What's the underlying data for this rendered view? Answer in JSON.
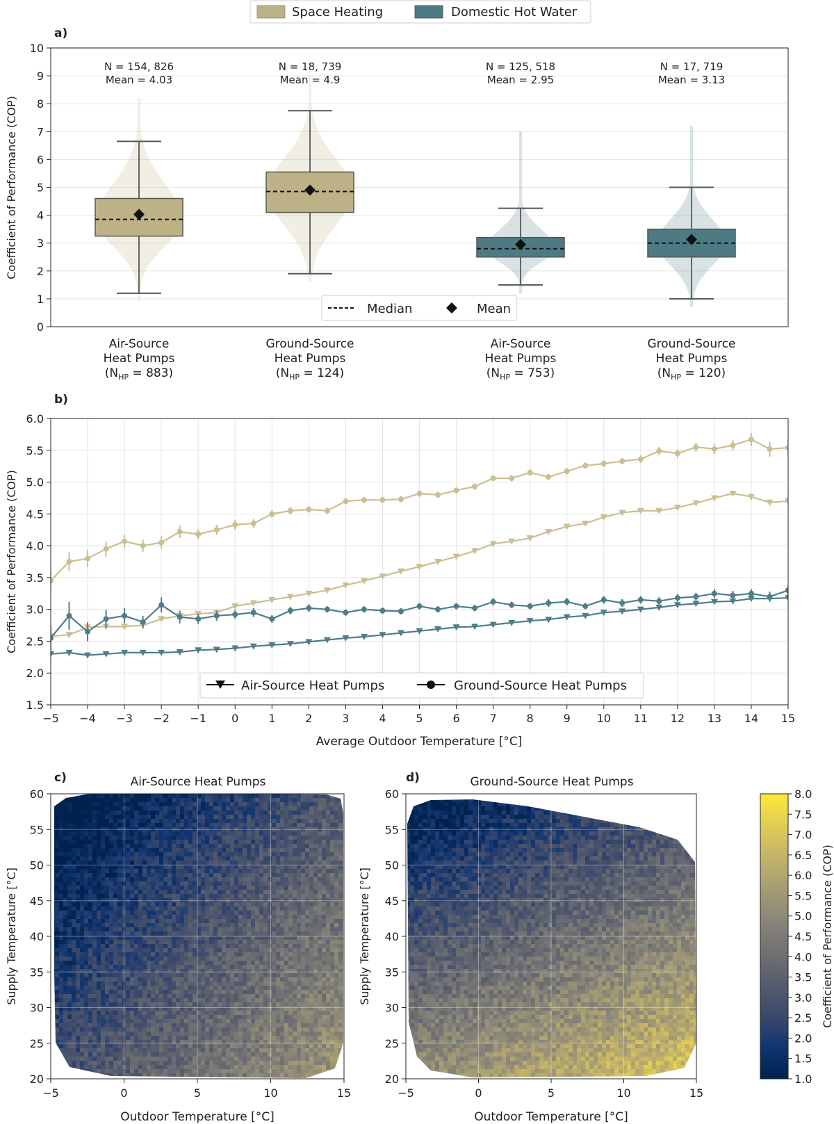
{
  "figure_legend": {
    "items": [
      {
        "label": "Space Heating",
        "color": "#bdb285"
      },
      {
        "label": "Domestic Hot Water",
        "color": "#4e7a84"
      }
    ]
  },
  "colors": {
    "space_heating": "#bdb285",
    "dhw": "#4e7a84",
    "sh_line": "#c9bf92",
    "dhw_line": "#4f7d88",
    "grid": "#e4e4e4"
  },
  "panel_labels": {
    "a": "a)",
    "b": "b)",
    "c": "c)",
    "d": "d)"
  },
  "chart_data": [
    {
      "id": "a",
      "type": "box",
      "ylabel": "Coefficient of Performance (COP)",
      "ylim": [
        0,
        10
      ],
      "yticks": [
        0,
        1,
        2,
        3,
        4,
        5,
        6,
        7,
        8,
        9,
        10
      ],
      "grid": true,
      "legend": {
        "placement": "bottom-center",
        "median_label": "Median",
        "mean_label": "Mean"
      },
      "boxes": [
        {
          "category": [
            "Air-Source",
            "Heat Pumps"
          ],
          "nhp_value": "883",
          "group": "space_heating",
          "whisker_low": 1.2,
          "q1": 3.25,
          "median": 3.85,
          "q3": 4.6,
          "whisker_high": 6.65,
          "mean": 4.03,
          "violin_top": 8.2,
          "n_label": "N = 154, 826",
          "mean_label": "Mean = 4.03"
        },
        {
          "category": [
            "Ground-Source",
            "Heat Pumps"
          ],
          "nhp_value": "124",
          "group": "space_heating",
          "whisker_low": 1.9,
          "q1": 4.1,
          "median": 4.85,
          "q3": 5.55,
          "whisker_high": 7.75,
          "mean": 4.9,
          "violin_top": 9.0,
          "n_label": "N = 18, 739",
          "mean_label": "Mean = 4.9"
        },
        {
          "category": [
            "Air-Source",
            "Heat Pumps"
          ],
          "nhp_value": "753",
          "group": "dhw",
          "whisker_low": 1.5,
          "q1": 2.5,
          "median": 2.8,
          "q3": 3.2,
          "whisker_high": 4.25,
          "mean": 2.95,
          "violin_top": 7.0,
          "n_label": "N = 125, 518",
          "mean_label": "Mean = 2.95"
        },
        {
          "category": [
            "Ground-Source",
            "Heat Pumps"
          ],
          "nhp_value": "120",
          "group": "dhw",
          "whisker_low": 1.0,
          "q1": 2.5,
          "median": 3.0,
          "q3": 3.5,
          "whisker_high": 5.0,
          "mean": 3.13,
          "violin_top": 7.2,
          "n_label": "N = 17, 719",
          "mean_label": "Mean = 3.13"
        }
      ]
    },
    {
      "id": "b",
      "type": "line",
      "xlabel": "Average Outdoor Temperature [°C]",
      "ylabel": "Coefficient of Performance (COP)",
      "xlim": [
        -5,
        15
      ],
      "ylim": [
        1.5,
        6.0
      ],
      "xticks": [
        -5,
        -4,
        -3,
        -2,
        -1,
        0,
        1,
        2,
        3,
        4,
        5,
        6,
        7,
        8,
        9,
        10,
        11,
        12,
        13,
        14,
        15
      ],
      "yticks": [
        1.5,
        2.0,
        2.5,
        3.0,
        3.5,
        4.0,
        4.5,
        5.0,
        5.5,
        6.0
      ],
      "grid": true,
      "x": [
        -5,
        -4.5,
        -4,
        -3.5,
        -3,
        -2.5,
        -2,
        -1.5,
        -1,
        -0.5,
        0,
        0.5,
        1,
        1.5,
        2,
        2.5,
        3,
        3.5,
        4,
        4.5,
        5,
        5.5,
        6,
        6.5,
        7,
        7.5,
        8,
        8.5,
        9,
        9.5,
        10,
        10.5,
        11,
        11.5,
        12,
        12.5,
        13,
        13.5,
        14,
        14.5,
        15
      ],
      "legend": {
        "placement": "bottom-center",
        "items": [
          "Air-Source Heat Pumps",
          "Ground-Source Heat Pumps"
        ]
      },
      "series": [
        {
          "name": "Ground-Source Heat Pumps",
          "group": "space_heating",
          "marker": "circle",
          "values": [
            3.45,
            3.75,
            3.8,
            3.95,
            4.07,
            4.0,
            4.05,
            4.22,
            4.18,
            4.25,
            4.33,
            4.35,
            4.5,
            4.55,
            4.57,
            4.55,
            4.7,
            4.72,
            4.72,
            4.73,
            4.82,
            4.8,
            4.87,
            4.93,
            5.06,
            5.06,
            5.15,
            5.08,
            5.17,
            5.26,
            5.29,
            5.33,
            5.36,
            5.49,
            5.45,
            5.55,
            5.52,
            5.58,
            5.67,
            5.52,
            5.54
          ],
          "errors": [
            0.15,
            0.15,
            0.13,
            0.12,
            0.1,
            0.1,
            0.1,
            0.1,
            0.08,
            0.08,
            0.08,
            0.07,
            0.06,
            0.06,
            0.05,
            0.05,
            0.05,
            0.05,
            0.05,
            0.05,
            0.05,
            0.05,
            0.05,
            0.05,
            0.05,
            0.05,
            0.05,
            0.05,
            0.05,
            0.05,
            0.05,
            0.05,
            0.06,
            0.06,
            0.07,
            0.07,
            0.08,
            0.08,
            0.1,
            0.12,
            0.12
          ]
        },
        {
          "name": "Air-Source Heat Pumps",
          "group": "space_heating",
          "marker": "triangle-down",
          "values": [
            2.58,
            2.6,
            2.72,
            2.73,
            2.73,
            2.75,
            2.85,
            2.9,
            2.93,
            2.95,
            3.05,
            3.1,
            3.15,
            3.2,
            3.25,
            3.3,
            3.38,
            3.45,
            3.52,
            3.6,
            3.67,
            3.75,
            3.83,
            3.92,
            4.03,
            4.07,
            4.12,
            4.22,
            4.3,
            4.35,
            4.45,
            4.52,
            4.55,
            4.55,
            4.6,
            4.67,
            4.75,
            4.82,
            4.77,
            4.68,
            4.7
          ],
          "errors": [
            0.06,
            0.05,
            0.05,
            0.04,
            0.04,
            0.04,
            0.03,
            0.03,
            0.03,
            0.03,
            0.03,
            0.03,
            0.03,
            0.03,
            0.03,
            0.03,
            0.03,
            0.03,
            0.03,
            0.03,
            0.03,
            0.03,
            0.03,
            0.03,
            0.03,
            0.03,
            0.03,
            0.03,
            0.03,
            0.03,
            0.03,
            0.03,
            0.03,
            0.03,
            0.04,
            0.04,
            0.04,
            0.04,
            0.05,
            0.05,
            0.05
          ]
        },
        {
          "name": "Ground-Source Heat Pumps",
          "group": "dhw",
          "marker": "circle",
          "values": [
            2.55,
            2.9,
            2.65,
            2.85,
            2.9,
            2.8,
            3.07,
            2.88,
            2.85,
            2.9,
            2.92,
            2.95,
            2.85,
            2.98,
            3.02,
            3.0,
            2.95,
            3.0,
            2.98,
            2.97,
            3.05,
            3.0,
            3.05,
            3.02,
            3.12,
            3.07,
            3.05,
            3.1,
            3.12,
            3.05,
            3.15,
            3.1,
            3.15,
            3.13,
            3.18,
            3.2,
            3.25,
            3.22,
            3.25,
            3.2,
            3.3
          ],
          "errors": [
            0.2,
            0.22,
            0.15,
            0.14,
            0.12,
            0.1,
            0.12,
            0.1,
            0.08,
            0.08,
            0.07,
            0.07,
            0.06,
            0.06,
            0.06,
            0.05,
            0.05,
            0.05,
            0.05,
            0.05,
            0.05,
            0.05,
            0.05,
            0.05,
            0.06,
            0.05,
            0.05,
            0.06,
            0.06,
            0.05,
            0.06,
            0.06,
            0.06,
            0.06,
            0.06,
            0.06,
            0.07,
            0.07,
            0.07,
            0.08,
            0.08
          ]
        },
        {
          "name": "Air-Source Heat Pumps",
          "group": "dhw",
          "marker": "triangle-down",
          "values": [
            2.3,
            2.32,
            2.28,
            2.3,
            2.32,
            2.32,
            2.32,
            2.33,
            2.36,
            2.37,
            2.39,
            2.42,
            2.44,
            2.46,
            2.49,
            2.52,
            2.55,
            2.57,
            2.6,
            2.63,
            2.66,
            2.69,
            2.72,
            2.73,
            2.76,
            2.79,
            2.82,
            2.84,
            2.88,
            2.9,
            2.95,
            2.97,
            3.0,
            3.03,
            3.07,
            3.09,
            3.12,
            3.13,
            3.17,
            3.17,
            3.18
          ],
          "errors": [
            0.04,
            0.04,
            0.03,
            0.03,
            0.03,
            0.03,
            0.03,
            0.02,
            0.02,
            0.02,
            0.02,
            0.02,
            0.02,
            0.02,
            0.02,
            0.02,
            0.02,
            0.02,
            0.02,
            0.02,
            0.02,
            0.02,
            0.02,
            0.02,
            0.02,
            0.02,
            0.02,
            0.02,
            0.02,
            0.02,
            0.02,
            0.02,
            0.02,
            0.02,
            0.02,
            0.02,
            0.03,
            0.03,
            0.03,
            0.03,
            0.03
          ]
        }
      ]
    },
    {
      "id": "c",
      "type": "heatmap",
      "title": "Air-Source Heat Pumps",
      "xlabel": "Outdoor Temperature [°C]",
      "ylabel": "Supply Temperature [°C]",
      "xlim": [
        -5,
        15
      ],
      "ylim": [
        20,
        60
      ],
      "xticks": [
        -5,
        0,
        5,
        10,
        15
      ],
      "yticks": [
        20,
        25,
        30,
        35,
        40,
        45,
        50,
        55,
        60
      ],
      "grid": true,
      "model": {
        "base": 2.6,
        "slope_outdoor": 0.14,
        "slope_supply": -0.06,
        "ref_supply": 35
      }
    },
    {
      "id": "d",
      "type": "heatmap",
      "title": "Ground-Source Heat Pumps",
      "xlabel": "Outdoor Temperature [°C]",
      "ylabel": "Supply Temperature [°C]",
      "xlim": [
        -5,
        15
      ],
      "ylim": [
        20,
        60
      ],
      "xticks": [
        -5,
        0,
        5,
        10,
        15
      ],
      "yticks": [
        20,
        25,
        30,
        35,
        40,
        45,
        50,
        55,
        60
      ],
      "grid": true,
      "model": {
        "base": 4.2,
        "slope_outdoor": 0.1,
        "slope_supply": -0.11,
        "ref_supply": 33
      }
    }
  ],
  "colorbar": {
    "label": "Coefficient of Performance (COP)",
    "min": 1.0,
    "max": 8.0,
    "ticks": [
      "1.0",
      "1.5",
      "2.0",
      "2.5",
      "3.0",
      "3.5",
      "4.0",
      "4.5",
      "5.0",
      "5.5",
      "6.0",
      "6.5",
      "7.0",
      "7.5",
      "8.0"
    ],
    "colormap": [
      "#00224e",
      "#123570",
      "#3b496c",
      "#575d6d",
      "#707173",
      "#8a8678",
      "#a59c74",
      "#c3b369",
      "#e1cc55",
      "#fee838"
    ]
  }
}
